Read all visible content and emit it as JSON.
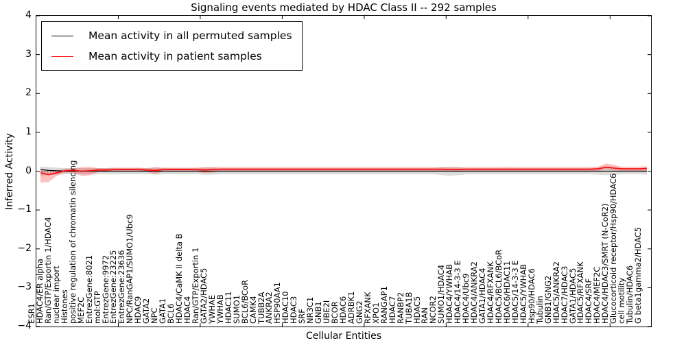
{
  "chart_data": {
    "type": "line",
    "title": "Signaling events mediated by HDAC Class II -- 292 samples",
    "xlabel": "Cellular Entities",
    "ylabel": "Inferred Activity",
    "ylim": [
      -4,
      4
    ],
    "yticks": [
      4,
      3,
      2,
      1,
      0,
      -1,
      -2,
      -3,
      -4
    ],
    "yticklabels": [
      "4",
      "3",
      "2",
      "1",
      "0",
      "−1",
      "−2",
      "−3",
      "−4"
    ],
    "xtick_interval": 10,
    "grid": false,
    "legend_position": "upper left",
    "categories": [
      "ESR1",
      "HDAC4/ER alpha",
      "Ran/GTP/Exportin 1/HDAC4",
      "nuclear import",
      "Histones",
      "positive regulation of chromatin silencing",
      "MEF2C",
      "EntrezGene:8021",
      "mol:GTP",
      "EntrezGene:9972",
      "EntrezGene:23225",
      "EntrezGene:23636",
      "NPC/RanGAP1/SUMO1/Ubc9",
      "HDAC9",
      "GATA2",
      "NPC",
      "GATA1",
      "BCL6",
      "HDAC4/CaMK II delta B",
      "HDAC4",
      "Ran/GTP/Exportin 1",
      "GATA2/HDAC5",
      "YWHAE",
      "YWHAB",
      "HDAC11",
      "SUMO1",
      "BCL6/BCoR",
      "CAMK4",
      "TUBB2A",
      "ANKRA2",
      "HSP90AA1",
      "HDAC10",
      "HDAC3",
      "SRF",
      "NR3C1",
      "GNB1",
      "UBE2I",
      "BCOR",
      "HDAC6",
      "ADRBK1",
      "GNG2",
      "RFXANK",
      "XPO1",
      "RANGAP1",
      "HDAC7",
      "RANBP2",
      "TUBA1B",
      "HDAC5",
      "RAN",
      "NCOR2",
      "SUMO1/HDAC4",
      "HDAC4/YWHAB",
      "HDAC4/14-3-3 E",
      "HDAC4/Ubc9",
      "HDAC4/ANKRA2",
      "GATA1/HDAC4",
      "HDAC4/RFXANK",
      "HDAC5/BCL6/BCoR",
      "HDAC6/HDAC11",
      "HDAC5/14-3-3 E",
      "HDAC5/YWHAB",
      "Hsp90/HDAC6",
      "Tubulin",
      "GNB1/GNG2",
      "HDAC5/ANKRA2",
      "HDAC7/HDAC3",
      "GATA1/HDAC5",
      "HDAC5/RFXANK",
      "HDAC4/SRF",
      "HDAC4/MEF2C",
      "HDAC4/HDAC3/SMRT (N-CoR2)",
      "Glucocorticoid receptor/Hsp90/HDAC6",
      "cell motility",
      "Tubulin/HDAC6",
      "G beta1gamma2/HDAC5"
    ],
    "series": [
      {
        "name": "Mean activity in all permuted samples",
        "color": "#000000",
        "band_color": "#999999",
        "band_opacity": 0.35,
        "values": [
          0.04,
          0.02,
          0.01,
          0,
          0,
          0,
          0,
          0,
          0,
          0,
          0,
          0,
          0,
          0,
          0,
          0,
          0,
          0,
          0,
          0,
          0,
          0,
          0,
          0,
          0,
          0,
          0,
          0,
          0,
          0,
          0,
          0,
          0,
          0,
          0,
          0,
          0,
          0,
          0,
          0,
          0,
          0,
          0,
          0,
          0,
          0,
          0,
          0,
          0,
          0,
          0,
          0,
          0,
          0,
          0,
          0,
          0,
          0,
          0,
          0,
          0,
          0,
          0,
          0,
          0,
          0,
          0,
          0,
          0,
          0,
          0,
          0,
          0,
          0,
          0
        ],
        "band_upper": [
          0.12,
          0.1,
          0.09,
          0.08,
          0.08,
          0.08,
          0.08,
          0.08,
          0.08,
          0.08,
          0.08,
          0.08,
          0.08,
          0.08,
          0.09,
          0.08,
          0.08,
          0.08,
          0.08,
          0.08,
          0.09,
          0.09,
          0.08,
          0.08,
          0.08,
          0.08,
          0.08,
          0.08,
          0.08,
          0.08,
          0.08,
          0.08,
          0.08,
          0.08,
          0.08,
          0.08,
          0.08,
          0.08,
          0.08,
          0.08,
          0.08,
          0.08,
          0.08,
          0.08,
          0.08,
          0.08,
          0.08,
          0.08,
          0.08,
          0.1,
          0.12,
          0.1,
          0.08,
          0.08,
          0.08,
          0.08,
          0.08,
          0.08,
          0.08,
          0.08,
          0.08,
          0.08,
          0.08,
          0.08,
          0.08,
          0.08,
          0.08,
          0.08,
          0.09,
          0.1,
          0.09,
          0.08,
          0.08,
          0.08,
          0.09
        ],
        "band_lower": [
          -0.12,
          -0.1,
          -0.09,
          -0.08,
          -0.08,
          -0.08,
          -0.08,
          -0.08,
          -0.08,
          -0.08,
          -0.08,
          -0.08,
          -0.08,
          -0.08,
          -0.09,
          -0.08,
          -0.08,
          -0.08,
          -0.08,
          -0.08,
          -0.09,
          -0.09,
          -0.08,
          -0.08,
          -0.08,
          -0.08,
          -0.08,
          -0.08,
          -0.08,
          -0.08,
          -0.08,
          -0.08,
          -0.08,
          -0.08,
          -0.08,
          -0.08,
          -0.08,
          -0.08,
          -0.08,
          -0.08,
          -0.08,
          -0.08,
          -0.08,
          -0.08,
          -0.08,
          -0.08,
          -0.08,
          -0.08,
          -0.08,
          -0.1,
          -0.12,
          -0.1,
          -0.08,
          -0.08,
          -0.08,
          -0.08,
          -0.08,
          -0.08,
          -0.08,
          -0.08,
          -0.08,
          -0.08,
          -0.08,
          -0.08,
          -0.08,
          -0.08,
          -0.08,
          -0.08,
          -0.09,
          -0.1,
          -0.09,
          -0.08,
          -0.08,
          -0.08,
          -0.09
        ]
      },
      {
        "name": "Mean activity in patient samples",
        "color": "#ff0000",
        "band_color": "#ff0000",
        "band_opacity": 0.25,
        "values": [
          -0.04,
          -0.09,
          -0.04,
          0.01,
          0.02,
          0.0,
          0.01,
          0.03,
          0.03,
          0.04,
          0.04,
          0.04,
          0.04,
          0.03,
          0.02,
          0.04,
          0.04,
          0.04,
          0.04,
          0.04,
          0.03,
          0.04,
          0.05,
          0.05,
          0.05,
          0.05,
          0.05,
          0.05,
          0.05,
          0.05,
          0.05,
          0.05,
          0.05,
          0.05,
          0.05,
          0.05,
          0.05,
          0.05,
          0.05,
          0.05,
          0.05,
          0.05,
          0.05,
          0.05,
          0.05,
          0.05,
          0.05,
          0.05,
          0.05,
          0.05,
          0.04,
          0.04,
          0.05,
          0.05,
          0.05,
          0.05,
          0.05,
          0.05,
          0.05,
          0.05,
          0.05,
          0.05,
          0.05,
          0.05,
          0.05,
          0.05,
          0.05,
          0.05,
          0.06,
          0.1,
          0.08,
          0.06,
          0.06,
          0.06,
          0.07
        ],
        "band_upper": [
          0.04,
          -0.02,
          0.02,
          0.06,
          0.08,
          0.1,
          0.11,
          0.08,
          0.08,
          0.09,
          0.09,
          0.09,
          0.09,
          0.08,
          0.1,
          0.09,
          0.09,
          0.09,
          0.09,
          0.09,
          0.1,
          0.11,
          0.1,
          0.1,
          0.1,
          0.1,
          0.1,
          0.1,
          0.1,
          0.1,
          0.1,
          0.1,
          0.1,
          0.1,
          0.1,
          0.1,
          0.1,
          0.1,
          0.1,
          0.1,
          0.1,
          0.1,
          0.1,
          0.1,
          0.1,
          0.1,
          0.1,
          0.1,
          0.1,
          0.1,
          0.09,
          0.1,
          0.1,
          0.1,
          0.1,
          0.1,
          0.1,
          0.11,
          0.1,
          0.1,
          0.1,
          0.1,
          0.1,
          0.1,
          0.1,
          0.1,
          0.1,
          0.1,
          0.11,
          0.2,
          0.16,
          0.11,
          0.11,
          0.11,
          0.13
        ],
        "band_lower": [
          -0.29,
          -0.28,
          -0.12,
          -0.04,
          -0.04,
          -0.12,
          -0.11,
          -0.02,
          -0.02,
          -0.01,
          -0.01,
          -0.01,
          -0.01,
          -0.02,
          -0.07,
          -0.01,
          -0.01,
          -0.01,
          -0.01,
          -0.01,
          -0.05,
          -0.04,
          0.0,
          0.0,
          0.0,
          0.0,
          0.0,
          0.0,
          0.0,
          0.0,
          0.0,
          0.0,
          0.0,
          0.0,
          0.0,
          0.0,
          0.0,
          0.0,
          0.0,
          0.0,
          0.0,
          0.0,
          0.0,
          0.0,
          0.0,
          0.0,
          0.0,
          0.0,
          0.0,
          0.0,
          -0.01,
          -0.02,
          0.0,
          0.0,
          0.0,
          0.0,
          0.0,
          0.0,
          0.0,
          0.0,
          0.0,
          0.0,
          0.0,
          0.0,
          0.0,
          0.0,
          0.0,
          0.0,
          0.01,
          0.04,
          0.02,
          0.01,
          0.01,
          0.01,
          0.01
        ]
      }
    ],
    "zero_line": {
      "style": "dotted",
      "color": "#000000",
      "y": 0
    }
  }
}
